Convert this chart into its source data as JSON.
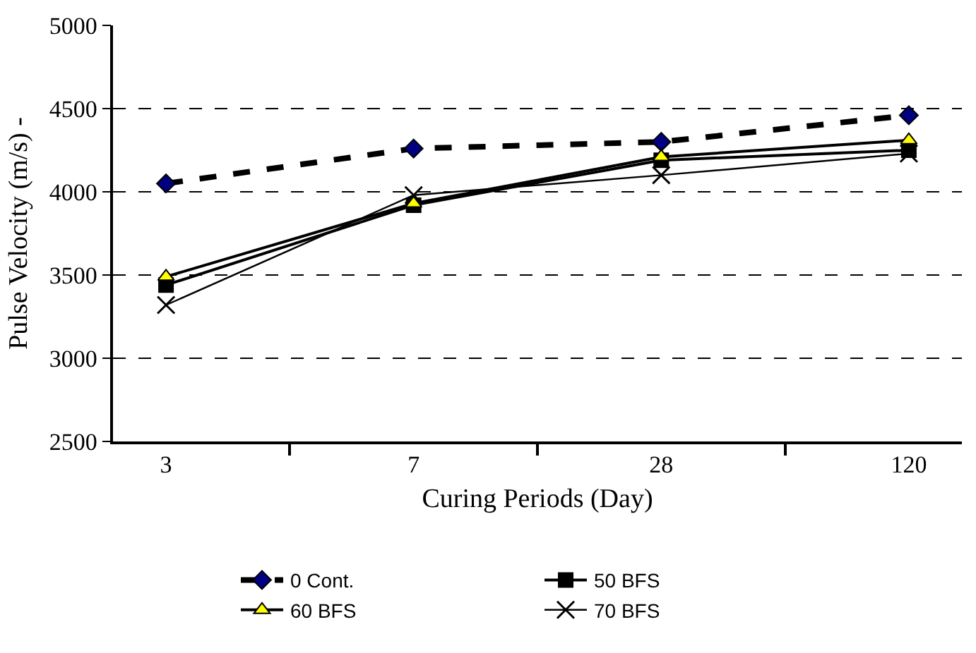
{
  "chart_data": {
    "type": "line",
    "xlabel": "Curing Periods (Day)",
    "ylabel": "Pulse Velocity (m/s) -",
    "categories": [
      "3",
      "7",
      "28",
      "120"
    ],
    "ylim": [
      2500,
      5000
    ],
    "yticks": [
      2500,
      3000,
      3500,
      4000,
      4500,
      5000
    ],
    "grid": "y",
    "legend": "bottom",
    "series": [
      {
        "name": "0 Cont.",
        "color": "#000080",
        "values": [
          4050,
          4260,
          4300,
          4460
        ],
        "marker": "diamond",
        "line_style": "dashed"
      },
      {
        "name": "50 BFS",
        "color": "#000000",
        "values": [
          3440,
          3920,
          4190,
          4250
        ],
        "marker": "square",
        "line_style": "solid"
      },
      {
        "name": "60 BFS",
        "color": "#ffff00",
        "values": [
          3490,
          3930,
          4210,
          4310
        ],
        "marker": "triangle",
        "line_style": "solid"
      },
      {
        "name": "70 BFS",
        "color": "#000000",
        "values": [
          3320,
          3980,
          4100,
          4230
        ],
        "marker": "cross",
        "line_style": "solid"
      }
    ]
  }
}
